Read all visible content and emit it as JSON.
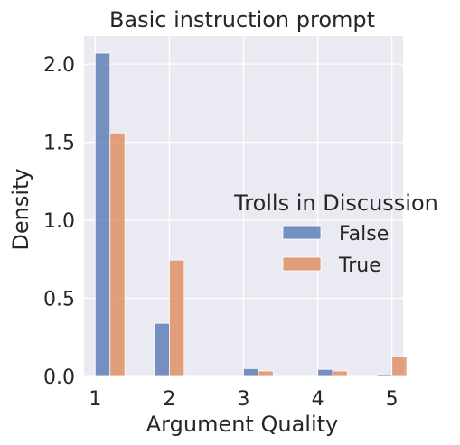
{
  "chart_data": {
    "type": "bar",
    "title": "Basic instruction prompt",
    "xlabel": "Argument Quality",
    "ylabel": "Density",
    "xticks": [
      "1",
      "2",
      "3",
      "4",
      "5"
    ],
    "yticks": [
      "0.0",
      "0.5",
      "1.0",
      "1.5",
      "2.0"
    ],
    "ylim": [
      0,
      2.18
    ],
    "xlim": [
      0.85,
      5.15
    ],
    "grid": true,
    "legend": {
      "title": "Trolls in Discussion",
      "placement": "right"
    },
    "series": [
      {
        "name": "False",
        "color": "#4c72b0",
        "bins": [
          {
            "x0": 1.0,
            "x1": 1.2,
            "value": 2.07
          },
          {
            "x0": 1.8,
            "x1": 2.0,
            "value": 0.34
          },
          {
            "x0": 3.0,
            "x1": 3.2,
            "value": 0.05
          },
          {
            "x0": 4.0,
            "x1": 4.2,
            "value": 0.045
          },
          {
            "x0": 4.8,
            "x1": 5.0,
            "value": 0.01
          }
        ]
      },
      {
        "name": "True",
        "color": "#dd8452",
        "bins": [
          {
            "x0": 1.2,
            "x1": 1.4,
            "value": 1.56
          },
          {
            "x0": 2.0,
            "x1": 2.2,
            "value": 0.745
          },
          {
            "x0": 3.2,
            "x1": 3.4,
            "value": 0.035
          },
          {
            "x0": 4.2,
            "x1": 4.4,
            "value": 0.035
          },
          {
            "x0": 5.0,
            "x1": 5.2,
            "value": 0.125
          }
        ]
      }
    ]
  }
}
